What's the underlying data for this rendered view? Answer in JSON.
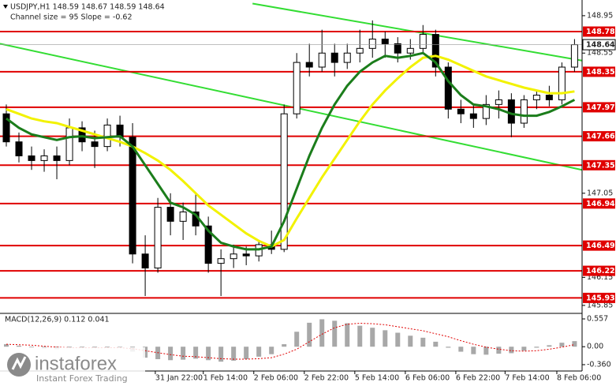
{
  "chart_data": [
    {
      "type": "candlestick",
      "title": "USDJPY,H1  148.59 148.67 148.59 148.64",
      "subtitle": "Channel size = 95 Slope = -0.62",
      "open": [
        147.9,
        147.6,
        147.45,
        147.4,
        147.45,
        147.4,
        147.75,
        147.6,
        147.55,
        147.78,
        147.65,
        146.4,
        146.25,
        146.9,
        146.75,
        146.85,
        146.7,
        146.3,
        146.35,
        146.4,
        146.38,
        146.5,
        146.45,
        147.9,
        148.45,
        148.4,
        148.55,
        148.45,
        148.55,
        148.6,
        148.7,
        148.65,
        148.55,
        148.6,
        148.75,
        148.4,
        147.95,
        147.9,
        147.85,
        148.0,
        148.05,
        147.8,
        148.05,
        148.1,
        148.05,
        148.4
      ],
      "high": [
        148.0,
        147.7,
        147.55,
        147.52,
        147.55,
        147.85,
        147.82,
        147.72,
        147.85,
        147.88,
        147.8,
        146.6,
        147.0,
        147.05,
        146.95,
        147.05,
        146.8,
        146.45,
        146.5,
        146.48,
        146.55,
        146.65,
        148.0,
        148.55,
        148.65,
        148.8,
        148.65,
        148.65,
        148.8,
        148.9,
        148.78,
        148.72,
        148.7,
        148.85,
        148.8,
        148.45,
        148.05,
        148.0,
        148.1,
        148.15,
        148.12,
        148.1,
        148.15,
        148.2,
        148.45,
        148.7
      ],
      "low": [
        147.55,
        147.38,
        147.3,
        147.28,
        147.2,
        147.35,
        147.5,
        147.32,
        147.5,
        147.55,
        146.3,
        145.95,
        146.2,
        146.6,
        146.55,
        146.6,
        146.2,
        145.95,
        146.25,
        146.28,
        146.32,
        146.4,
        146.42,
        147.85,
        148.3,
        148.35,
        148.3,
        148.38,
        148.45,
        148.5,
        148.5,
        148.45,
        148.48,
        148.55,
        148.3,
        147.85,
        147.8,
        147.75,
        147.78,
        147.85,
        147.65,
        147.75,
        147.95,
        147.98,
        148.0,
        148.35
      ],
      "close": [
        147.6,
        147.45,
        147.4,
        147.45,
        147.4,
        147.75,
        147.6,
        147.55,
        147.78,
        147.65,
        146.4,
        146.25,
        146.9,
        146.75,
        146.85,
        146.7,
        146.3,
        146.35,
        146.4,
        146.38,
        146.5,
        146.45,
        147.9,
        148.45,
        148.4,
        148.55,
        148.45,
        148.55,
        148.6,
        148.7,
        148.65,
        148.55,
        148.6,
        148.75,
        148.4,
        147.95,
        147.9,
        147.85,
        148.0,
        148.05,
        147.8,
        148.05,
        148.1,
        148.05,
        148.4,
        148.64
      ],
      "lines": [
        {
          "color": "#f2f200",
          "values": [
            147.95,
            147.9,
            147.85,
            147.82,
            147.8,
            147.76,
            147.72,
            147.68,
            147.64,
            147.6,
            147.55,
            147.48,
            147.4,
            147.3,
            147.18,
            147.05,
            146.92,
            146.82,
            146.72,
            146.62,
            146.54,
            146.48,
            146.55,
            146.78,
            147.0,
            147.22,
            147.42,
            147.62,
            147.82,
            148.0,
            148.15,
            148.28,
            148.4,
            148.5,
            148.52,
            148.48,
            148.42,
            148.36,
            148.3,
            148.26,
            148.22,
            148.18,
            148.15,
            148.12,
            148.12,
            148.14
          ]
        },
        {
          "color": "#1b7d1b",
          "values": [
            147.85,
            147.75,
            147.68,
            147.65,
            147.62,
            147.65,
            147.66,
            147.64,
            147.65,
            147.66,
            147.55,
            147.35,
            147.15,
            146.95,
            146.9,
            146.82,
            146.65,
            146.52,
            146.48,
            146.45,
            146.45,
            146.48,
            146.75,
            147.1,
            147.45,
            147.75,
            148.0,
            148.2,
            148.35,
            148.45,
            148.52,
            148.5,
            148.52,
            148.55,
            148.45,
            148.25,
            148.1,
            148.0,
            147.98,
            147.95,
            147.9,
            147.88,
            147.88,
            147.92,
            147.98,
            148.05
          ]
        }
      ],
      "channel_color": "#33dd33",
      "channel": [
        {
          "x": [
            19.5,
            45.6
          ],
          "y": [
            149.08,
            148.47
          ]
        },
        {
          "x": [
            -0.5,
            45.6
          ],
          "y": [
            148.65,
            147.3
          ]
        }
      ],
      "levels": [
        148.78,
        148.35,
        147.97,
        147.66,
        147.35,
        146.94,
        146.49,
        146.22,
        145.93
      ],
      "level_color": "#e00000",
      "last_price": 148.64,
      "xlim": [
        -0.5,
        45.6
      ],
      "ylim": [
        145.773,
        149.118
      ],
      "yticks": [
        148.95,
        148.55,
        147.05,
        146.15,
        145.85
      ],
      "xticks": [
        {
          "value": 11.8,
          "label": "31 Jan 22:00"
        },
        {
          "value": 15.6,
          "label": "1 Feb 14:00"
        },
        {
          "value": 19.6,
          "label": "2 Feb 06:00"
        },
        {
          "value": 23.6,
          "label": "2 Feb 22:00"
        },
        {
          "value": 27.6,
          "label": "5 Feb 14:00"
        },
        {
          "value": 31.6,
          "label": "6 Feb 06:00"
        },
        {
          "value": 35.6,
          "label": "6 Feb 22:00"
        },
        {
          "value": 39.5,
          "label": "7 Feb 14:00"
        },
        {
          "value": 43.6,
          "label": "8 Feb 06:00"
        }
      ]
    },
    {
      "type": "macd",
      "title": "MACD(12,26,9) 0.112 0.041",
      "histogram": [
        0.05,
        0.02,
        -0.02,
        -0.04,
        -0.05,
        -0.03,
        -0.02,
        -0.03,
        -0.02,
        -0.01,
        -0.1,
        -0.22,
        -0.25,
        -0.27,
        -0.26,
        -0.24,
        -0.27,
        -0.3,
        -0.28,
        -0.25,
        -0.2,
        -0.15,
        0.05,
        0.3,
        0.48,
        0.55,
        0.52,
        0.47,
        0.42,
        0.38,
        0.33,
        0.28,
        0.22,
        0.18,
        0.1,
        -0.02,
        -0.1,
        -0.15,
        -0.16,
        -0.14,
        -0.13,
        -0.08,
        -0.02,
        0.03,
        0.08,
        0.112
      ],
      "signal": [
        0.05,
        0.04,
        0.03,
        0.01,
        -0.01,
        -0.02,
        -0.02,
        -0.02,
        -0.02,
        -0.02,
        -0.04,
        -0.08,
        -0.12,
        -0.16,
        -0.19,
        -0.2,
        -0.22,
        -0.24,
        -0.25,
        -0.25,
        -0.24,
        -0.22,
        -0.15,
        -0.05,
        0.1,
        0.25,
        0.38,
        0.45,
        0.47,
        0.46,
        0.44,
        0.4,
        0.36,
        0.32,
        0.26,
        0.2,
        0.12,
        0.05,
        -0.01,
        -0.05,
        -0.08,
        -0.09,
        -0.08,
        -0.05,
        -0.01,
        0.041
      ],
      "hist_color": "#a8a8a8",
      "signal_color": "#e00000",
      "xlim": [
        -0.5,
        45.6
      ],
      "ylim": [
        -0.487,
        0.652
      ],
      "yticks": [
        0.557,
        {
          "value": 0,
          "label": "0.00"
        },
        {
          "value": -0.36,
          "label": "-0.360"
        }
      ]
    }
  ],
  "logo": {
    "name": "instaforex",
    "tagline": "Instant Forex Trading"
  }
}
